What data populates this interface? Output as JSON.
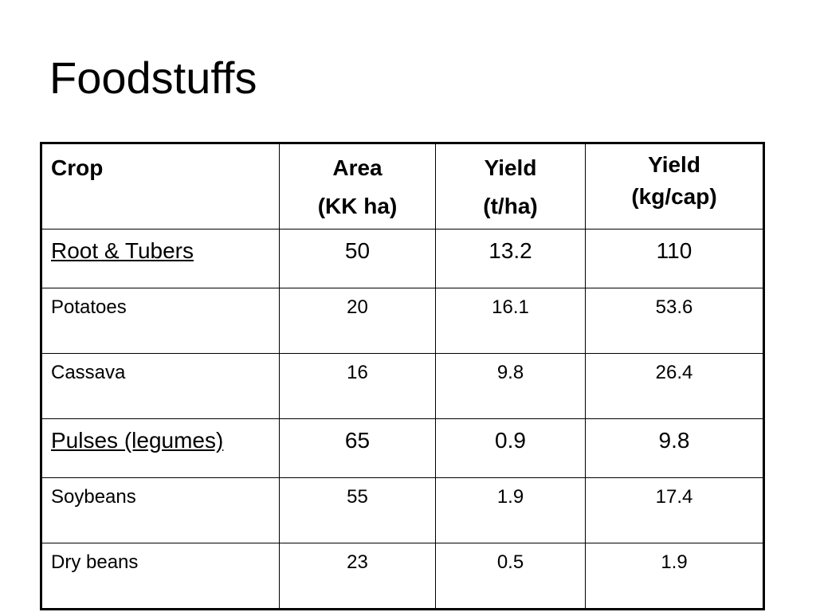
{
  "title": "Foodstuffs",
  "table": {
    "headers": [
      [
        "Crop"
      ],
      [
        "Area",
        "(KK ha)"
      ],
      [
        "Yield",
        "(t/ha)"
      ],
      [
        "Yield",
        "(kg/cap)"
      ]
    ],
    "rows": [
      {
        "kind": "group",
        "crop": "Root & Tubers",
        "area": "50",
        "yield_t_ha": "13.2",
        "yield_kg_cap": "110"
      },
      {
        "kind": "item",
        "crop": "Potatoes",
        "area": "20",
        "yield_t_ha": "16.1",
        "yield_kg_cap": "53.6"
      },
      {
        "kind": "item",
        "crop": "Cassava",
        "area": "16",
        "yield_t_ha": "9.8",
        "yield_kg_cap": "26.4"
      },
      {
        "kind": "group",
        "crop": "Pulses (legumes)",
        "area": "65",
        "yield_t_ha": "0.9",
        "yield_kg_cap": "9.8"
      },
      {
        "kind": "item",
        "crop": "Soybeans",
        "area": "55",
        "yield_t_ha": "1.9",
        "yield_kg_cap": "17.4"
      },
      {
        "kind": "item",
        "crop": "Dry beans",
        "area": "23",
        "yield_t_ha": "0.5",
        "yield_kg_cap": "1.9"
      }
    ]
  }
}
